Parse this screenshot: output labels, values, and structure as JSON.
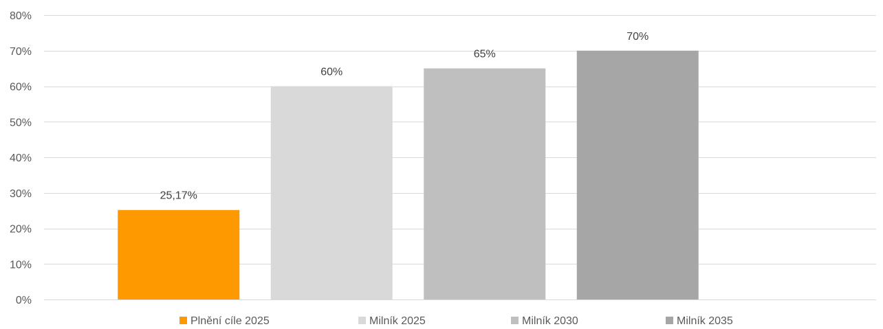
{
  "chart_data": {
    "type": "bar",
    "categories": [
      "Plnění cíle 2025",
      "Milník 2025",
      "Milník 2030",
      "Milník 2035"
    ],
    "values": [
      25.17,
      60,
      65,
      70
    ],
    "data_labels": [
      "25,17%",
      "60%",
      "65%",
      "70%"
    ],
    "bar_colors": [
      "#FF9900",
      "#D9D9D9",
      "#BFBFBF",
      "#A6A6A6"
    ],
    "title": "",
    "xlabel": "",
    "ylabel": "",
    "ylim": [
      0,
      80
    ],
    "y_ticks": [
      0,
      10,
      20,
      30,
      40,
      50,
      60,
      70,
      80
    ],
    "y_tick_labels": [
      "0%",
      "10%",
      "20%",
      "30%",
      "40%",
      "50%",
      "60%",
      "70%",
      "80%"
    ],
    "grid": true,
    "legend_position": "bottom"
  }
}
